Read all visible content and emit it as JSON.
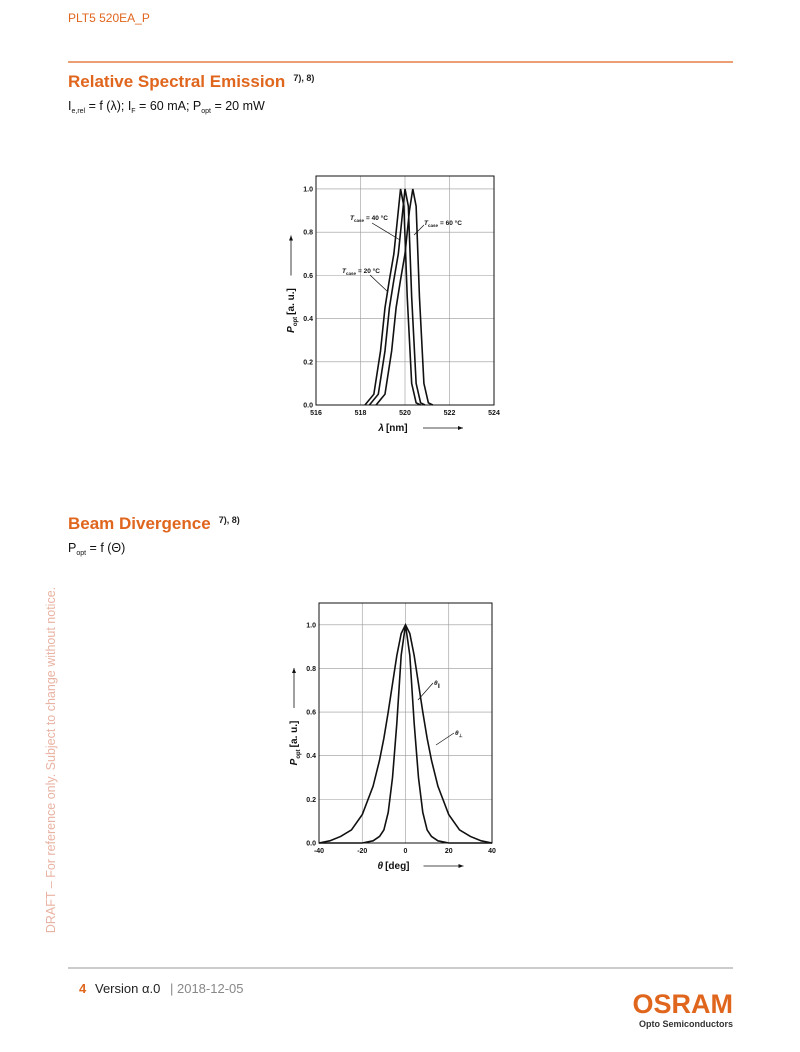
{
  "header": {
    "title": "PLT5 520EA_P"
  },
  "sections": [
    {
      "title": "Relative Spectral Emission",
      "notes": "7), 8)",
      "formula": [
        {
          "text": "I"
        },
        {
          "text": "e,rel",
          "sub": true
        },
        {
          "text": " = f (λ); I"
        },
        {
          "text": "F",
          "sub": true
        },
        {
          "text": " = 60 mA; P"
        },
        {
          "text": "opt",
          "sub": true
        },
        {
          "text": " = 20 mW"
        }
      ]
    },
    {
      "title": "Beam Divergence",
      "notes": "7), 8)",
      "formula": [
        {
          "text": "P"
        },
        {
          "text": "opt",
          "sub": true
        },
        {
          "text": " = f (Θ)"
        }
      ]
    }
  ],
  "watermark": "DRAFT – For reference only.  Subject to change without notice.",
  "footer": {
    "page": "4",
    "version": "Version α.0",
    "date": "| 2018-12-05",
    "logo": "OSRAM",
    "logo_sub": "Opto Semiconductors"
  },
  "chart_data": [
    {
      "type": "line",
      "xlabel": {
        "symbol": "λ",
        "text": "[nm]"
      },
      "ylabel": {
        "symbol": "P",
        "sub": "opt",
        "text": "[a. u.]"
      },
      "xlim": [
        516,
        524
      ],
      "xticks": [
        516,
        518,
        520,
        522,
        524
      ],
      "ylim": [
        0,
        1.06
      ],
      "yticks": [
        {
          "value": 0,
          "label": "0.0"
        },
        0.2,
        0.4,
        0.6,
        0.8,
        {
          "value": 1,
          "label": "1.0"
        }
      ],
      "grid": true,
      "color": "#111111",
      "series": [
        {
          "symbol": "T",
          "subscript": "case",
          "name": "= 20 °C",
          "x": [
            518.2,
            518.6,
            518.9,
            519.1,
            519.3,
            519.5,
            519.7,
            519.8,
            519.95,
            520.1,
            520.3,
            520.5,
            520.7
          ],
          "values": [
            0,
            0.05,
            0.25,
            0.45,
            0.58,
            0.7,
            0.9,
            1.0,
            0.92,
            0.5,
            0.1,
            0.01,
            0
          ]
        },
        {
          "symbol": "T",
          "subscript": "case",
          "name": "= 40 °C",
          "x": [
            518.4,
            518.8,
            519.1,
            519.3,
            519.5,
            519.7,
            519.9,
            520.0,
            520.15,
            520.3,
            520.5,
            520.7,
            520.9
          ],
          "values": [
            0,
            0.05,
            0.25,
            0.45,
            0.58,
            0.7,
            0.9,
            1.0,
            0.92,
            0.5,
            0.1,
            0.01,
            0
          ]
        },
        {
          "symbol": "T",
          "subscript": "case",
          "name": "= 60 °C",
          "x": [
            518.7,
            519.1,
            519.4,
            519.6,
            519.8,
            520.0,
            520.2,
            520.35,
            520.5,
            520.65,
            520.85,
            521.05,
            521.25
          ],
          "values": [
            0,
            0.05,
            0.25,
            0.45,
            0.58,
            0.7,
            0.9,
            1.0,
            0.92,
            0.5,
            0.1,
            0.01,
            0
          ]
        }
      ]
    },
    {
      "type": "line",
      "xlabel": {
        "symbol": "θ",
        "text": "[deg]"
      },
      "ylabel": {
        "symbol": "P",
        "sub": "opt",
        "text": "[a. u.]"
      },
      "xlim": [
        -40,
        40
      ],
      "xticks": [
        -40,
        -20,
        0,
        20,
        40
      ],
      "ylim": [
        0,
        1.1
      ],
      "yticks": [
        {
          "value": 0,
          "label": "0.0"
        },
        0.2,
        0.4,
        0.6,
        0.8,
        {
          "value": 1,
          "label": "1.0"
        }
      ],
      "grid": true,
      "color": "#111111",
      "x": [
        -40,
        -35,
        -30,
        -25,
        -20,
        -15,
        -12,
        -10,
        -8,
        -6,
        -4,
        -2,
        0,
        2,
        4,
        6,
        8,
        10,
        12,
        15,
        20,
        25,
        30,
        35,
        40
      ],
      "series": [
        {
          "symbol": "θ",
          "subscript": "∥",
          "values": [
            0,
            0,
            0,
            0,
            0,
            0.01,
            0.03,
            0.06,
            0.14,
            0.3,
            0.55,
            0.86,
            1.0,
            0.86,
            0.55,
            0.3,
            0.14,
            0.06,
            0.03,
            0.01,
            0,
            0,
            0,
            0,
            0
          ]
        },
        {
          "symbol": "θ",
          "subscript": "⊥",
          "values": [
            0,
            0.01,
            0.03,
            0.06,
            0.13,
            0.26,
            0.38,
            0.48,
            0.6,
            0.73,
            0.86,
            0.96,
            1.0,
            0.96,
            0.86,
            0.73,
            0.6,
            0.48,
            0.38,
            0.26,
            0.13,
            0.06,
            0.03,
            0.01,
            0
          ]
        }
      ]
    }
  ]
}
